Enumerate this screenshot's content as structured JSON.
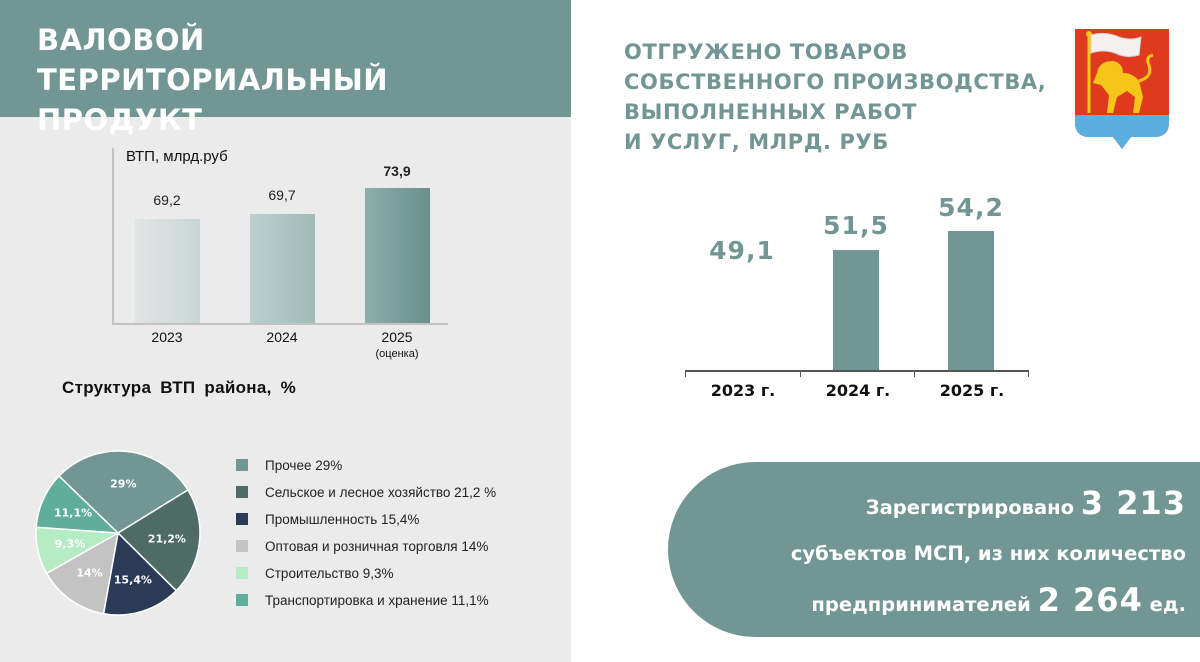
{
  "left": {
    "title": "ВАЛОВОЙ ТЕРРИТОРИАЛЬНЫЙ ПРОДУКТ",
    "vtp_chart": {
      "unit_label": "ВТП, млрд.руб",
      "bars": [
        {
          "year": "2023",
          "value": "69,2",
          "sub": ""
        },
        {
          "year": "2024",
          "value": "69,7",
          "sub": ""
        },
        {
          "year": "2025",
          "value": "73,9",
          "sub": "(оценка)"
        }
      ]
    },
    "structure": {
      "title": "Структура ВТП района, %",
      "slices": [
        {
          "label": "29%",
          "legend": "Прочее 29%",
          "color": "#729694"
        },
        {
          "label": "21,2%",
          "legend": "Сельское и лесное хозяйство 21,2 %",
          "color": "#4f6b66"
        },
        {
          "label": "15,4%",
          "legend": "Промышленность 15,4%",
          "color": "#2b3b57"
        },
        {
          "label": "14%",
          "legend": "Оптовая и розничная торговля 14%",
          "color": "#c3c3c3"
        },
        {
          "label": "9,3%",
          "legend": "Строительство 9,3%",
          "color": "#b5ecc4"
        },
        {
          "label": "11,1%",
          "legend": "Транспортировка и хранение 11,1%",
          "color": "#5fae9b"
        }
      ]
    }
  },
  "right": {
    "title_lines": [
      "ОТГРУЖЕНО ТОВАРОВ",
      "СОБСТВЕННОГО ПРОИЗВОДСТВА,",
      "ВЫПОЛНЕННЫХ РАБОТ",
      "И УСЛУГ, МЛРД. РУБ"
    ],
    "shipped_chart": {
      "bars": [
        {
          "year": "2023 г.",
          "value": "49,1"
        },
        {
          "year": "2024 г.",
          "value": "51,5"
        },
        {
          "year": "2025 г.",
          "value": "54,2"
        }
      ]
    },
    "msp": {
      "line1_text": "Зарегистрировано ",
      "line1_number": "3 213",
      "line2_text": "субъектов МСП, из них количество",
      "line3_text": "предпринимателей ",
      "line3_number": "2 264",
      "line3_suffix": " ед."
    }
  },
  "colors": {
    "accent": "#729694",
    "left_background": "#ebebeb",
    "crest_red": "#e03a1e",
    "crest_gold": "#f5c518",
    "crest_blue": "#5aaee0"
  },
  "chart_data": [
    {
      "type": "bar",
      "title": "ВТП, млрд.руб",
      "categories": [
        "2023",
        "2024",
        "2025 (оценка)"
      ],
      "values": [
        69.2,
        69.7,
        73.9
      ],
      "xlabel": "",
      "ylabel": "млрд.руб",
      "grid": false
    },
    {
      "type": "pie",
      "title": "Структура ВТП района, %",
      "categories": [
        "Прочее",
        "Сельское и лесное хозяйство",
        "Промышленность",
        "Оптовая и розничная торговля",
        "Строительство",
        "Транспортировка и хранение"
      ],
      "values": [
        29,
        21.2,
        15.4,
        14,
        9.3,
        11.1
      ],
      "legend_position": "right"
    },
    {
      "type": "bar",
      "title": "Отгружено товаров собственного производства, выполненных работ и услуг, млрд. руб",
      "categories": [
        "2023 г.",
        "2024 г.",
        "2025 г."
      ],
      "values": [
        49.1,
        51.5,
        54.2
      ],
      "xlabel": "",
      "ylabel": "млрд. руб",
      "grid": false,
      "note": "2023 bar not rendered; only value label shown"
    }
  ]
}
